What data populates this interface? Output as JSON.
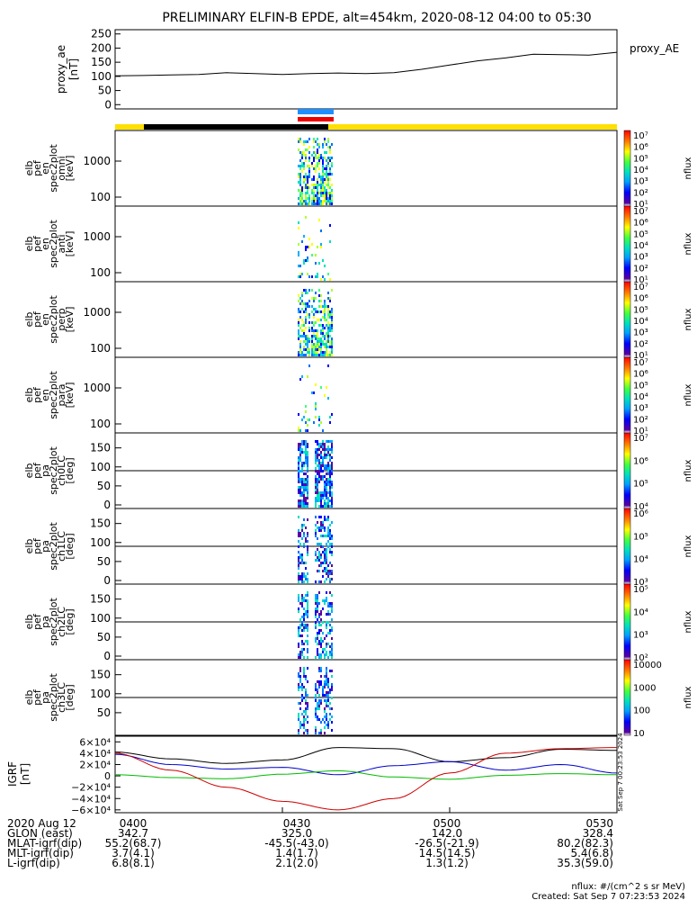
{
  "title": "PRELIMINARY ELFIN-B EPDE, alt=454km, 2020-08-12 04:00 to 05:30",
  "ae_panel": {
    "ylabel": [
      "proxy_ae",
      "[nT]"
    ],
    "legend": "proxy_AE",
    "ticks": [
      250,
      200,
      150,
      100,
      50,
      0
    ],
    "ylim": [
      -15,
      265
    ]
  },
  "spectrogram_panels": [
    {
      "ylabel": [
        "elb",
        "pef",
        "en",
        "spec2plot",
        "omni",
        "[keV]"
      ],
      "ticks": [
        "1000",
        "100"
      ],
      "cbar_labels": [
        "10⁷",
        "10⁶",
        "10⁵",
        "10⁴",
        "10³",
        "10²",
        "10¹"
      ],
      "cbar_title": "nflux"
    },
    {
      "ylabel": [
        "elb",
        "pef",
        "en",
        "spec2plot",
        "anti",
        "[keV]"
      ],
      "ticks": [
        "1000",
        "100"
      ],
      "cbar_labels": [
        "10⁷",
        "10⁶",
        "10⁵",
        "10⁴",
        "10³",
        "10²",
        "10¹"
      ],
      "cbar_title": "nflux"
    },
    {
      "ylabel": [
        "elb",
        "pef",
        "en",
        "spec2plot",
        "perp",
        "[keV]"
      ],
      "ticks": [
        "1000",
        "100"
      ],
      "cbar_labels": [
        "10⁷",
        "10⁶",
        "10⁵",
        "10⁴",
        "10³",
        "10²",
        "10¹"
      ],
      "cbar_title": "nflux"
    },
    {
      "ylabel": [
        "elb",
        "pef",
        "en",
        "spec2plot",
        "para",
        "[keV]"
      ],
      "ticks": [
        "1000",
        "100"
      ],
      "cbar_labels": [
        "10⁷",
        "10⁶",
        "10⁵",
        "10⁴",
        "10³",
        "10²",
        "10¹"
      ],
      "cbar_title": "nflux"
    },
    {
      "ylabel": [
        "elb",
        "pef",
        "pa",
        "spec2plot",
        "ch0LC",
        "[deg]"
      ],
      "ticks": [
        "150",
        "100",
        "50",
        "0"
      ],
      "cbar_labels": [
        "10⁷",
        "10⁶",
        "10⁵",
        "10⁴"
      ],
      "cbar_title": "nflux"
    },
    {
      "ylabel": [
        "elb",
        "pef",
        "pa",
        "spec2plot",
        "ch1LC",
        "[deg]"
      ],
      "ticks": [
        "150",
        "100",
        "50",
        "0"
      ],
      "cbar_labels": [
        "10⁶",
        "10⁵",
        "10⁴",
        "10³"
      ],
      "cbar_title": "nflux"
    },
    {
      "ylabel": [
        "elb",
        "pef",
        "pa",
        "spec2plot",
        "ch2LC",
        "[deg]"
      ],
      "ticks": [
        "150",
        "100",
        "50",
        "0"
      ],
      "cbar_labels": [
        "10⁵",
        "10⁴",
        "10³",
        "10²"
      ],
      "cbar_title": "nflux"
    },
    {
      "ylabel": [
        "elb",
        "pef",
        "pa",
        "spec2plot",
        "ch3LC",
        "[deg]"
      ],
      "ticks": [
        "150",
        "100",
        "50"
      ],
      "cbar_labels": [
        "10000",
        "1000",
        "100",
        "10"
      ],
      "cbar_title": "nflux"
    }
  ],
  "igrf_panel": {
    "ylabel": [
      "IGRF",
      "[nT]"
    ],
    "ticks": [
      "6×10⁴",
      "4×10⁴",
      "2×10⁴",
      "0",
      "−2×10⁴",
      "−4×10⁴",
      "−6×10⁴"
    ],
    "side_label": "Sat Sep  7 00:23:53 2024"
  },
  "chart_data": {
    "type": "line",
    "title": "PRELIMINARY ELFIN-B EPDE, alt=454km, 2020-08-12 04:00 to 05:30",
    "x_ticks": [
      "0400",
      "0430",
      "0500",
      "0530"
    ],
    "x_minutes": [
      0,
      30,
      60,
      90
    ],
    "proxy_ae": {
      "x": [
        0,
        5,
        10,
        15,
        20,
        25,
        30,
        35,
        40,
        45,
        50,
        55,
        60,
        65,
        70,
        75,
        80,
        85,
        90
      ],
      "values": [
        102,
        103,
        105,
        107,
        113,
        110,
        107,
        110,
        112,
        110,
        113,
        125,
        140,
        155,
        165,
        178,
        177,
        175,
        185
      ],
      "ylim": [
        -15,
        265
      ]
    },
    "igrf_series": [
      {
        "x": [
          0,
          10,
          20,
          30,
          40,
          50,
          60,
          70,
          80,
          90
        ],
        "values": [
          42000,
          30000,
          22000,
          28000,
          50000,
          48000,
          25000,
          32000,
          47000,
          45000
        ]
      },
      {
        "x": [
          0,
          10,
          20,
          30,
          40,
          50,
          60,
          70,
          80,
          90
        ],
        "values": [
          38000,
          20000,
          12000,
          15000,
          2000,
          18000,
          25000,
          10000,
          20000,
          5000
        ]
      },
      {
        "x": [
          0,
          10,
          20,
          30,
          40,
          50,
          60,
          70,
          80,
          90
        ],
        "values": [
          2000,
          -3000,
          -5000,
          3000,
          9000,
          -2000,
          -6000,
          1000,
          4000,
          2000
        ]
      },
      {
        "x": [
          0,
          10,
          20,
          30,
          40,
          50,
          60,
          70,
          80,
          90
        ],
        "values": [
          40000,
          10000,
          -20000,
          -45000,
          -60000,
          -40000,
          5000,
          40000,
          48000,
          50000
        ]
      }
    ],
    "igrf_ylim": [
      -65000,
      70000
    ]
  },
  "footer": {
    "rows": [
      {
        "label": "2020 Aug 12",
        "values": [
          "0400",
          "0430",
          "0500",
          "0530"
        ]
      },
      {
        "label": "GLON (east)",
        "values": [
          "342.7",
          "325.0",
          "142.0",
          "328.4"
        ]
      },
      {
        "label": "MLAT-igrf(dip)",
        "values": [
          "55.2(68.7)",
          "-45.5(-43.0)",
          "-26.5(-21.9)",
          "80.2(82.3)"
        ]
      },
      {
        "label": "MLT-igrf(dip)",
        "values": [
          "3.7(4.1)",
          "1.4(1.7)",
          "14.5(14.5)",
          "5.4(6.8)"
        ]
      },
      {
        "label": "L-igrf(dip)",
        "values": [
          "6.8(8.1)",
          "2.1(2.0)",
          "1.3(1.2)",
          "35.3(59.0)"
        ]
      }
    ],
    "note1": "nflux: #/(cm^2 s sr MeV)",
    "note2": "Created: Sat Sep  7 07:23:53 2024"
  },
  "colors": {
    "sun_bar": "#ffe000",
    "eclipse_bar": "#000000",
    "blue_bar": "#1f8fff",
    "red_bar": "#ee0000",
    "ae_line": "#000000",
    "igrf": [
      "#000000",
      "#0000cc",
      "#00bb00",
      "#cc0000"
    ]
  }
}
